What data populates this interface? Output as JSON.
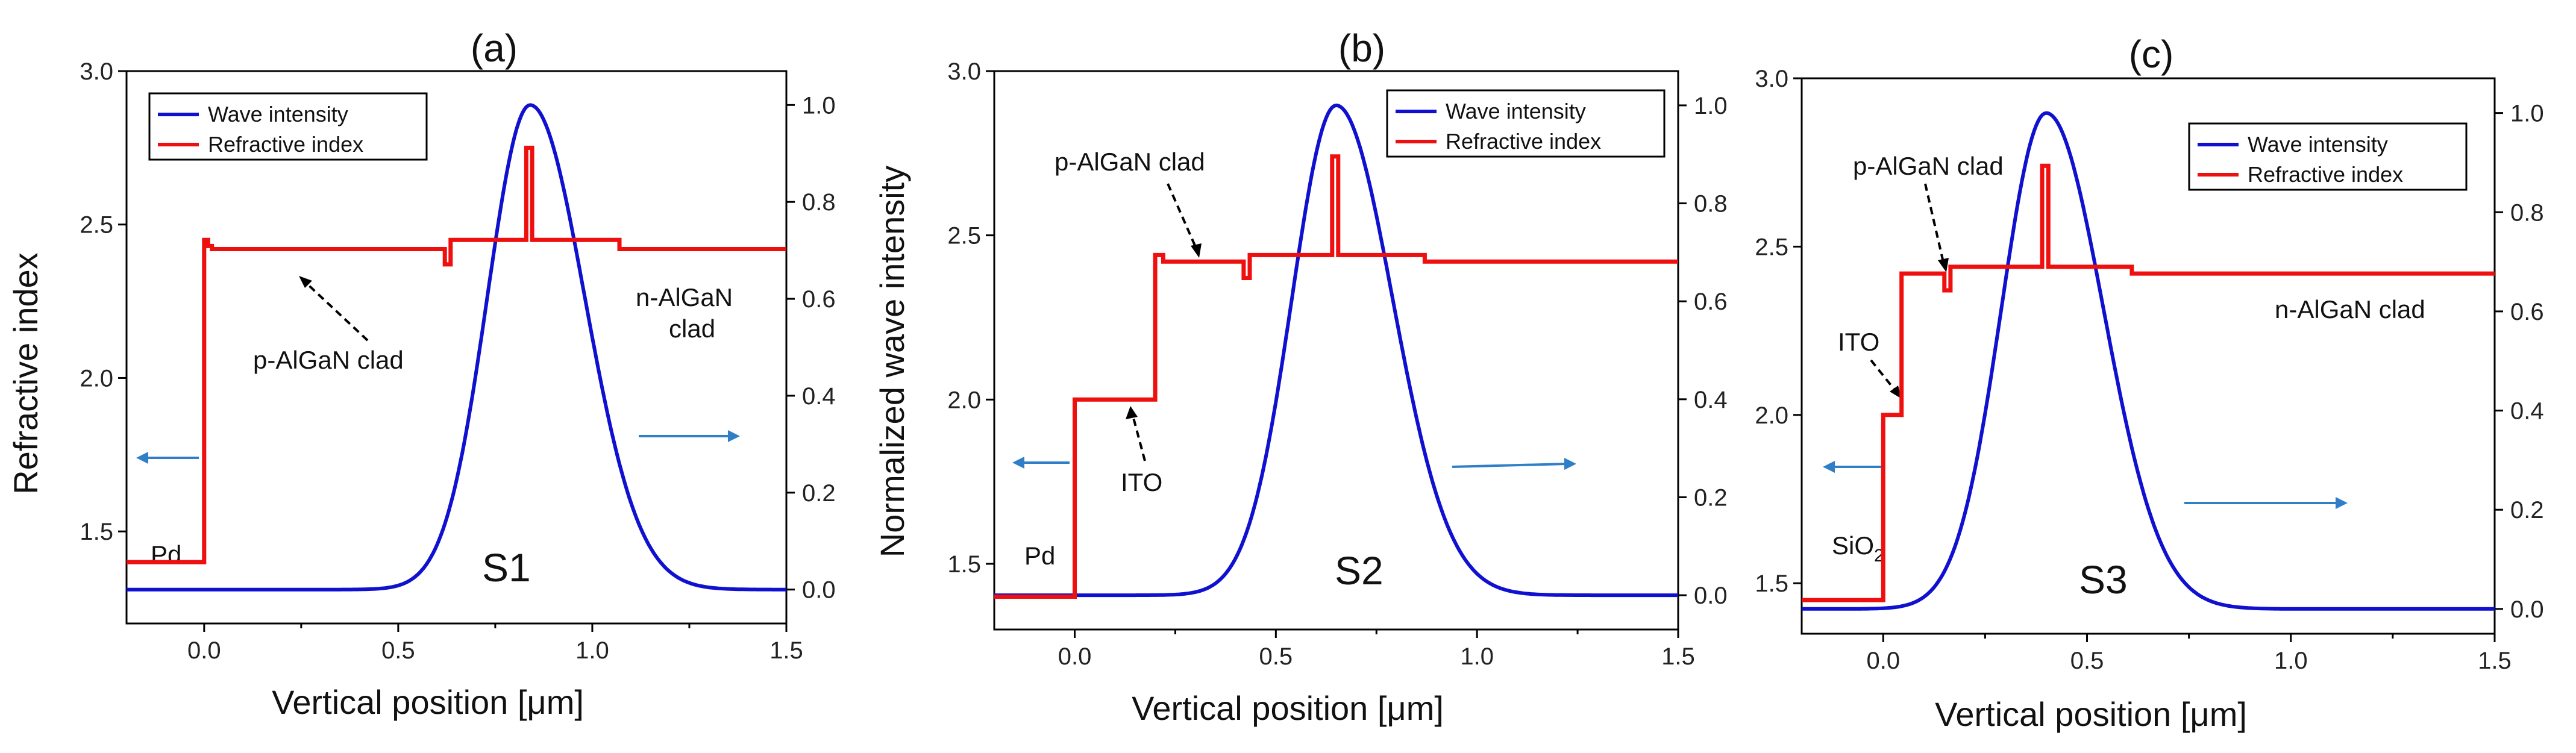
{
  "colors": {
    "wave": "#1010d0",
    "refractive": "#ee0f0f",
    "arrow": "#2f7fc8",
    "axis": "#000000"
  },
  "chart_data": [
    {
      "type": "line",
      "panel": "(a)",
      "sample": "S1",
      "xlabel": "Vertical position [μm]",
      "ylabel_left": "Refractive index",
      "ylabel_right": "Normalized wave intensity",
      "xlim": [
        -0.2,
        1.5
      ],
      "ylim_left": [
        1.2,
        3.0
      ],
      "ylim_right": [
        -0.07,
        1.07
      ],
      "xticks": [
        "0.0",
        "0.5",
        "1.0",
        "1.5"
      ],
      "yticks_left": [
        "1.5",
        "2.0",
        "2.5",
        "3.0"
      ],
      "yticks_right": [
        "0.0",
        "0.2",
        "0.4",
        "0.6",
        "0.8",
        "1.0"
      ],
      "legend": [
        "Wave intensity",
        "Refractive index"
      ],
      "wave": {
        "center": 0.84,
        "sigma_left": 0.11,
        "sigma_right": 0.14
      },
      "refractive_index": {
        "x": [
          -0.2,
          0.0,
          0.0,
          0.01,
          0.01,
          0.02,
          0.02,
          0.62,
          0.62,
          0.635,
          0.635,
          0.83,
          0.83,
          0.845,
          0.845,
          1.07,
          1.07,
          1.5
        ],
        "y": [
          1.4,
          1.4,
          2.45,
          2.45,
          2.43,
          2.43,
          2.42,
          2.42,
          2.37,
          2.37,
          2.45,
          2.45,
          2.75,
          2.75,
          2.45,
          2.45,
          2.42,
          2.42
        ]
      },
      "annotations": {
        "pd": "Pd",
        "clad_p": "p-AlGaN  clad",
        "clad_n1": "n-AlGaN",
        "clad_n2": "clad"
      }
    },
    {
      "type": "line",
      "panel": "(b)",
      "sample": "S2",
      "xlabel": "Vertical position [μm]",
      "xlim": [
        -0.2,
        1.5
      ],
      "ylim_left": [
        1.3,
        3.0
      ],
      "ylim_right": [
        -0.07,
        1.07
      ],
      "xticks": [
        "0.0",
        "0.5",
        "1.0",
        "1.5"
      ],
      "yticks_left": [
        "1.5",
        "2.0",
        "2.5",
        "3.0"
      ],
      "yticks_right": [
        "0.0",
        "0.2",
        "0.4",
        "0.6",
        "0.8",
        "1.0"
      ],
      "legend": [
        "Wave intensity",
        "Refractive index"
      ],
      "wave": {
        "center": 0.65,
        "sigma_left": 0.11,
        "sigma_right": 0.14
      },
      "refractive_index": {
        "x": [
          -0.2,
          0.0,
          0.0,
          0.2,
          0.2,
          0.22,
          0.22,
          0.42,
          0.42,
          0.435,
          0.435,
          0.64,
          0.64,
          0.655,
          0.655,
          0.87,
          0.87,
          1.5
        ],
        "y": [
          1.4,
          1.4,
          2.0,
          2.0,
          2.44,
          2.44,
          2.42,
          2.42,
          2.37,
          2.37,
          2.44,
          2.44,
          2.74,
          2.74,
          2.44,
          2.44,
          2.42,
          2.42
        ]
      },
      "annotations": {
        "pd": "Pd",
        "clad_p": "p-AlGaN  clad",
        "ito": "ITO"
      }
    },
    {
      "type": "line",
      "panel": "(c)",
      "sample": "S3",
      "xlabel": "Vertical position [μm]",
      "xlim": [
        -0.2,
        1.5
      ],
      "ylim_left": [
        1.35,
        3.0
      ],
      "ylim_right": [
        -0.05,
        1.07
      ],
      "xticks": [
        "0.0",
        "0.5",
        "1.0",
        "1.5"
      ],
      "yticks_left": [
        "1.5",
        "2.0",
        "2.5",
        "3.0"
      ],
      "yticks_right": [
        "0.0",
        "0.2",
        "0.4",
        "0.6",
        "0.8",
        "1.0"
      ],
      "legend": [
        "Wave intensity",
        "Refractive index"
      ],
      "wave": {
        "center": 0.4,
        "sigma_left": 0.11,
        "sigma_right": 0.14
      },
      "refractive_index": {
        "x": [
          -0.2,
          0.0,
          0.0,
          0.045,
          0.045,
          0.15,
          0.15,
          0.165,
          0.165,
          0.39,
          0.39,
          0.405,
          0.405,
          0.61,
          0.61,
          1.5
        ],
        "y": [
          1.45,
          1.45,
          2.0,
          2.0,
          2.42,
          2.42,
          2.37,
          2.37,
          2.44,
          2.44,
          2.74,
          2.74,
          2.44,
          2.44,
          2.42,
          2.42
        ]
      },
      "annotations": {
        "sio2_main": "SiO",
        "sio2_sub": "2",
        "ito": "ITO",
        "clad_p": "p-AlGaN  clad",
        "clad_n": "n-AlGaN  clad"
      }
    }
  ]
}
